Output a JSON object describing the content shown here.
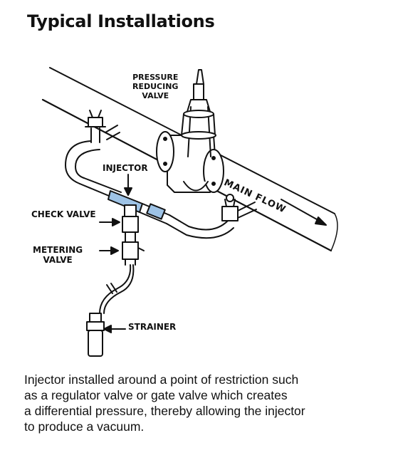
{
  "title": "Typical Installations",
  "labels": {
    "pressure_reducing_valve": [
      "PRESSURE",
      "REDUCING",
      "VALVE"
    ],
    "injector": "INJECTOR",
    "main_flow": "MAIN FLOW",
    "check_valve": "CHECK VALVE",
    "metering_valve": [
      "METERING",
      "VALVE"
    ],
    "strainer": "STRAINER"
  },
  "caption": [
    "Injector installed around a point of restriction such",
    "as a regulator valve or gate valve which creates",
    "a differential pressure, thereby allowing the injector",
    "to produce a vacuum."
  ],
  "colors": {
    "line": "#111111",
    "injector_tint": "#9ec3e6"
  }
}
